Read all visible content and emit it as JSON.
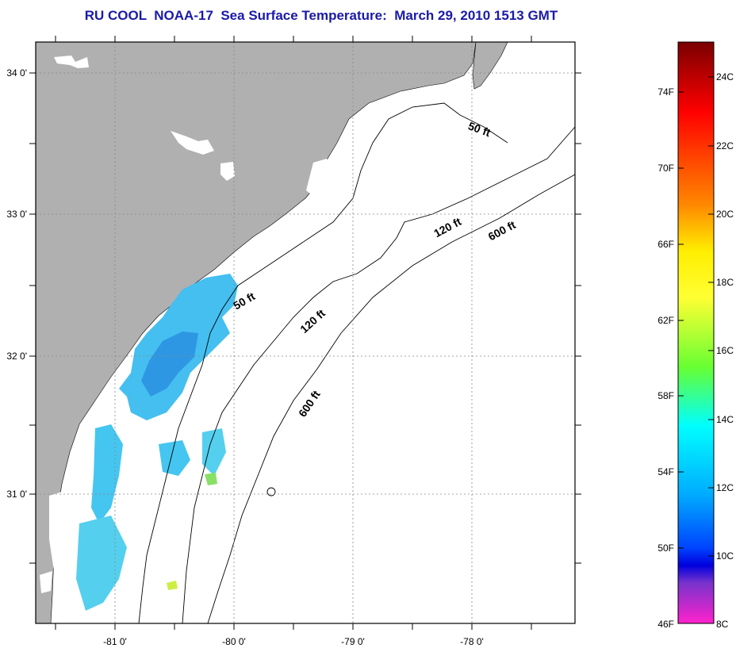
{
  "title": "RU COOL  NOAA-17  Sea Surface Temperature:  March 29, 2010 1513 GMT",
  "map": {
    "lon_labels": [
      "-81 0'",
      "-80 0'",
      "-79 0'",
      "-78 0'"
    ],
    "lat_labels": [
      "34 0'",
      "33 0'",
      "32 0'",
      "31 0'"
    ],
    "contours": [
      {
        "label": "50 ft",
        "rotate": -20
      },
      {
        "label": "50 ft",
        "rotate": -30
      },
      {
        "label": "120 ft",
        "rotate": -28
      },
      {
        "label": "120 ft",
        "rotate": -42
      },
      {
        "label": "600 ft",
        "rotate": -28
      },
      {
        "label": "600 ft",
        "rotate": -56
      }
    ],
    "colors": {
      "land": "#b0b0b0",
      "cloud": "#ffffff",
      "sst_cool": "#44bff0",
      "sst_cold": "#2a8fe0"
    }
  },
  "colorbar": {
    "fahrenheit_labels": [
      "74F",
      "70F",
      "66F",
      "62F",
      "58F",
      "54F",
      "50F",
      "46F"
    ],
    "celsius_labels": [
      "24C",
      "22C",
      "20C",
      "18C",
      "16C",
      "14C",
      "12C",
      "10C",
      "8C"
    ],
    "stops": [
      "#7a0000",
      "#ff0000",
      "#ff8800",
      "#ffff00",
      "#66ff33",
      "#00ffff",
      "#0077ff",
      "#0000dd",
      "#ff22cc"
    ]
  }
}
